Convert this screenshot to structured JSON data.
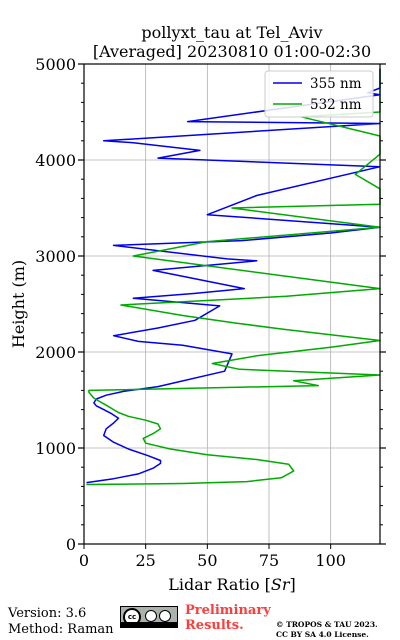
{
  "chart_data": {
    "type": "line",
    "title_line1": "pollyxt_tau at Tel_Aviv",
    "title_line2": "[Averaged] 20230810 01:00-02:30",
    "xlabel": "Lidar Ratio [$Sr$]",
    "xlabel_prefix": "Lidar Ratio [",
    "xlabel_unit": "Sr",
    "xlabel_suffix": "]",
    "ylabel": "Height (m)",
    "xlim": [
      0,
      120
    ],
    "ylim": [
      0,
      5000
    ],
    "xticks": [
      0,
      25,
      50,
      75,
      100
    ],
    "xtick_labels": [
      "0",
      "25",
      "50",
      "75",
      "100"
    ],
    "yticks": [
      0,
      1000,
      2000,
      3000,
      4000,
      5000
    ],
    "ytick_labels": [
      "0",
      "1000",
      "2000",
      "3000",
      "4000",
      "5000"
    ],
    "grid": true,
    "legend_position": "top-right",
    "series": [
      {
        "name": "355 nm",
        "color": "#0000ee",
        "x": [
          1,
          12,
          22,
          28,
          31,
          31,
          26,
          18,
          12,
          8,
          9,
          12,
          14,
          11,
          8,
          5,
          4,
          5,
          9,
          16,
          30,
          57,
          60,
          40,
          22,
          12,
          30,
          45,
          55,
          20,
          45,
          65,
          28,
          70,
          58,
          12,
          64,
          100,
          120,
          50,
          70,
          120,
          30,
          47,
          20,
          8,
          120,
          42,
          120,
          115,
          120,
          120
        ],
        "y": [
          640,
          680,
          730,
          790,
          840,
          870,
          920,
          990,
          1060,
          1130,
          1200,
          1260,
          1310,
          1360,
          1400,
          1440,
          1470,
          1510,
          1550,
          1590,
          1640,
          1800,
          1980,
          2070,
          2110,
          2170,
          2250,
          2330,
          2480,
          2560,
          2610,
          2660,
          2850,
          2950,
          2970,
          3110,
          3160,
          3240,
          3300,
          3430,
          3630,
          3930,
          4020,
          4100,
          4180,
          4200,
          4380,
          4400,
          4680,
          4700,
          4750,
          4950
        ]
      },
      {
        "name": "532 nm",
        "color": "#00aa00",
        "x": [
          1,
          40,
          66,
          80,
          85,
          83,
          70,
          50,
          35,
          25,
          24,
          28,
          31,
          30,
          25,
          18,
          14,
          12,
          10,
          8,
          6,
          4,
          3,
          2,
          2,
          95,
          85,
          120,
          63,
          52,
          70,
          100,
          120,
          80,
          62,
          40,
          15,
          82,
          120,
          20,
          50,
          120,
          60,
          120,
          120,
          110,
          120,
          120,
          120,
          88,
          120,
          120,
          120,
          120,
          120
        ],
        "y": [
          620,
          630,
          650,
          690,
          760,
          830,
          880,
          930,
          990,
          1050,
          1100,
          1150,
          1200,
          1250,
          1290,
          1330,
          1370,
          1400,
          1430,
          1460,
          1490,
          1520,
          1550,
          1580,
          1600,
          1650,
          1700,
          1760,
          1820,
          1880,
          1960,
          2050,
          2120,
          2240,
          2300,
          2380,
          2490,
          2580,
          2660,
          3000,
          3150,
          3300,
          3500,
          3540,
          3700,
          3850,
          4060,
          4120,
          4250,
          4450,
          4500,
          4600,
          4800,
          4860,
          4950
        ]
      }
    ]
  },
  "footer": {
    "version": "Version: 3.6",
    "method": "Method: Raman",
    "preliminary": "Preliminary Results.",
    "copyright_line1": "© TROPOS & TAU 2023.",
    "copyright_line2": "CC BY SA 4.0 License."
  }
}
